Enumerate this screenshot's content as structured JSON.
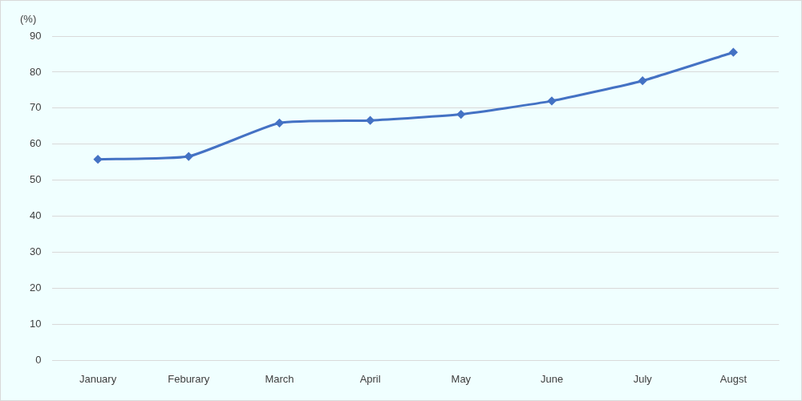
{
  "chart_data": {
    "type": "line",
    "y_label": "(%)",
    "categories": [
      "January",
      "Feburary",
      "March",
      "April",
      "May",
      "June",
      "July",
      "Augst"
    ],
    "values": [
      55.8,
      56.6,
      65.9,
      66.6,
      68.3,
      72.0,
      77.6,
      85.5
    ],
    "color": "#4472c4",
    "marker": "diamond",
    "line_style": "solid",
    "ylim": [
      0,
      90
    ],
    "yticks": [
      0,
      10,
      20,
      30,
      40,
      50,
      60,
      70,
      80,
      90
    ],
    "grid": true
  }
}
